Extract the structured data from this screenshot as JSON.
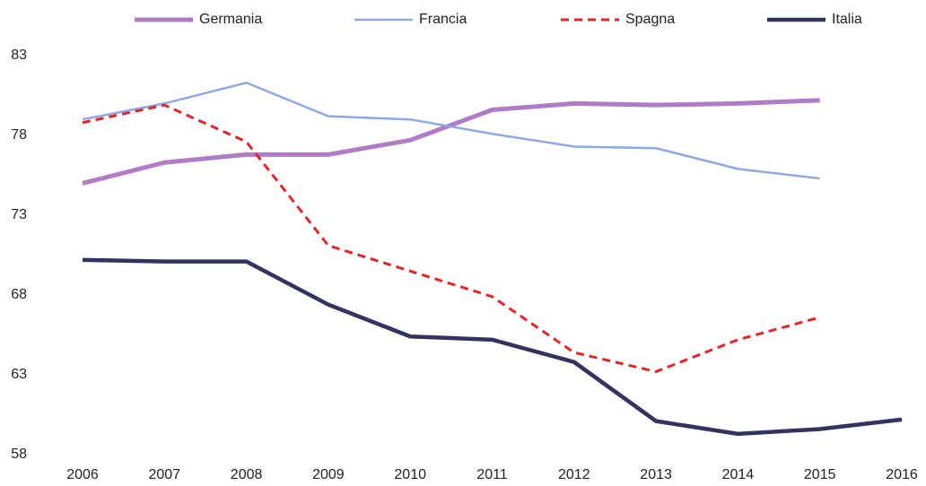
{
  "chart_data": {
    "type": "line",
    "categories": [
      "2006",
      "2007",
      "2008",
      "2009",
      "2010",
      "2011",
      "2012",
      "2013",
      "2014",
      "2015",
      "2016"
    ],
    "series": [
      {
        "name": "Germania",
        "color": "#b07cc6",
        "values": [
          75.0,
          76.3,
          76.8,
          76.8,
          77.7,
          79.6,
          80.0,
          79.9,
          80.0,
          80.2,
          null
        ]
      },
      {
        "name": "Francia",
        "color": "#8fa8e0",
        "values": [
          79.0,
          80.0,
          81.3,
          79.2,
          79.0,
          78.1,
          77.3,
          77.2,
          75.9,
          75.3,
          null
        ]
      },
      {
        "name": "Spagna",
        "color": "#e0262b",
        "dashed": true,
        "values": [
          78.8,
          79.9,
          77.6,
          71.1,
          69.5,
          67.9,
          64.4,
          63.2,
          65.2,
          66.6,
          null
        ]
      },
      {
        "name": "Italia",
        "color": "#34325e",
        "values": [
          70.2,
          70.1,
          70.1,
          67.4,
          65.4,
          65.2,
          63.8,
          60.1,
          59.3,
          59.6,
          60.2
        ]
      }
    ],
    "ylim": [
      58,
      83
    ],
    "yticks": [
      58,
      63,
      68,
      73,
      78,
      83
    ],
    "grid": false,
    "legend": "top"
  }
}
